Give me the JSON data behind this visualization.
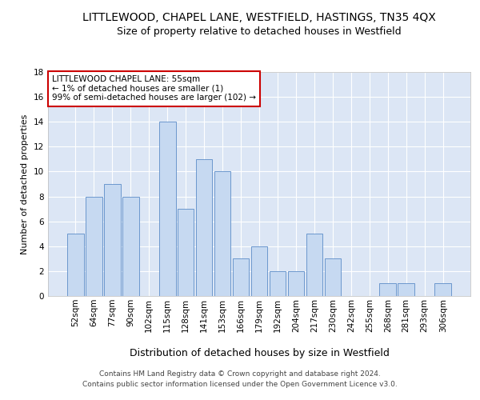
{
  "title": "LITTLEWOOD, CHAPEL LANE, WESTFIELD, HASTINGS, TN35 4QX",
  "subtitle": "Size of property relative to detached houses in Westfield",
  "xlabel": "Distribution of detached houses by size in Westfield",
  "ylabel": "Number of detached properties",
  "categories": [
    "52sqm",
    "64sqm",
    "77sqm",
    "90sqm",
    "102sqm",
    "115sqm",
    "128sqm",
    "141sqm",
    "153sqm",
    "166sqm",
    "179sqm",
    "192sqm",
    "204sqm",
    "217sqm",
    "230sqm",
    "242sqm",
    "255sqm",
    "268sqm",
    "281sqm",
    "293sqm",
    "306sqm"
  ],
  "values": [
    5,
    8,
    9,
    8,
    0,
    14,
    7,
    11,
    10,
    3,
    4,
    2,
    2,
    5,
    3,
    0,
    0,
    1,
    1,
    0,
    1
  ],
  "bar_color": "#c6d9f1",
  "bar_edge_color": "#5b8cc8",
  "annotation_box_color": "#ffffff",
  "annotation_box_edge": "#cc0000",
  "annotation_text_line1": "LITTLEWOOD CHAPEL LANE: 55sqm",
  "annotation_text_line2": "← 1% of detached houses are smaller (1)",
  "annotation_text_line3": "99% of semi-detached houses are larger (102) →",
  "ylim": [
    0,
    18
  ],
  "yticks": [
    0,
    2,
    4,
    6,
    8,
    10,
    12,
    14,
    16,
    18
  ],
  "background_color": "#dce6f5",
  "footer_line1": "Contains HM Land Registry data © Crown copyright and database right 2024.",
  "footer_line2": "Contains public sector information licensed under the Open Government Licence v3.0.",
  "title_fontsize": 10,
  "subtitle_fontsize": 9,
  "xlabel_fontsize": 9,
  "ylabel_fontsize": 8,
  "tick_fontsize": 7.5,
  "footer_fontsize": 6.5,
  "annotation_fontsize": 7.5
}
